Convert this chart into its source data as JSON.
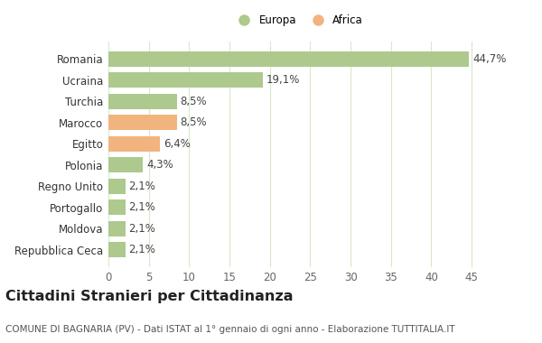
{
  "categories": [
    "Repubblica Ceca",
    "Moldova",
    "Portogallo",
    "Regno Unito",
    "Polonia",
    "Egitto",
    "Marocco",
    "Turchia",
    "Ucraina",
    "Romania"
  ],
  "values": [
    2.1,
    2.1,
    2.1,
    2.1,
    4.3,
    6.4,
    8.5,
    8.5,
    19.1,
    44.7
  ],
  "labels": [
    "2,1%",
    "2,1%",
    "2,1%",
    "2,1%",
    "4,3%",
    "6,4%",
    "8,5%",
    "8,5%",
    "19,1%",
    "44,7%"
  ],
  "colors": [
    "#adc98e",
    "#adc98e",
    "#adc98e",
    "#adc98e",
    "#adc98e",
    "#f2b47e",
    "#f2b47e",
    "#adc98e",
    "#adc98e",
    "#adc98e"
  ],
  "europa_color": "#adc98e",
  "africa_color": "#f2b47e",
  "xlim": [
    0,
    47
  ],
  "xticks": [
    0,
    5,
    10,
    15,
    20,
    25,
    30,
    35,
    40,
    45
  ],
  "title": "Cittadini Stranieri per Cittadinanza",
  "subtitle": "COMUNE DI BAGNARIA (PV) - Dati ISTAT al 1° gennaio di ogni anno - Elaborazione TUTTITALIA.IT",
  "bg_color": "#ffffff",
  "grid_color": "#d8e8c8",
  "bar_height": 0.72,
  "label_fontsize": 8.5,
  "tick_fontsize": 8.5,
  "title_fontsize": 11.5,
  "subtitle_fontsize": 7.5
}
